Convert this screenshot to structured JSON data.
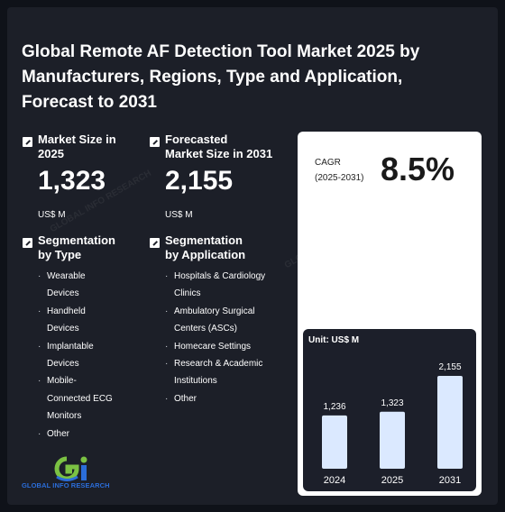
{
  "title": "Global Remote AF Detection Tool Market 2025 by Manufacturers, Regions, Type and Application, Forecast to 2031",
  "market_size": {
    "label_line1": "Market Size in",
    "label_line2": "2025",
    "value": "1,323",
    "unit": "US$ M"
  },
  "forecast_size": {
    "label_line1": "Forecasted",
    "label_line2": "Market Size in 2031",
    "value": "2,155",
    "unit": "US$ M"
  },
  "segmentation_type": {
    "label_line1": "Segmentation",
    "label_line2": "by Type",
    "items": [
      "Wearable",
      "Devices",
      "Handheld",
      "Devices",
      "Implantable",
      "Devices",
      "Mobile-",
      "Connected ECG",
      "Monitors",
      "Other"
    ],
    "bullets": [
      0,
      2,
      4,
      6,
      9
    ]
  },
  "segmentation_application": {
    "label_line1": "Segmentation",
    "label_line2": "by Application",
    "items": [
      "Hospitals & Cardiology",
      "Clinics",
      "Ambulatory Surgical",
      "Centers (ASCs)",
      "Homecare Settings",
      "Research & Academic",
      "Institutions",
      "Other"
    ],
    "bullets": [
      0,
      2,
      4,
      5,
      7
    ]
  },
  "cagr": {
    "label_line1": "CAGR",
    "label_line2": "(2025-2031)",
    "value": "8.5%"
  },
  "chart_data": {
    "type": "bar",
    "unit_label": "Unit: US$ M",
    "categories": [
      "2024",
      "2025",
      "2031"
    ],
    "values": [
      1236,
      1323,
      2155
    ],
    "value_labels": [
      "1,236",
      "1,323",
      "2,155"
    ],
    "bar_color": "#dbe9ff"
  },
  "logo": {
    "text": "GLOBAL INFO RESEARCH",
    "colors": {
      "blue": "#2b6dd9",
      "green": "#7bc143"
    }
  },
  "watermark": "GLOBAL INFO RESEARCH"
}
